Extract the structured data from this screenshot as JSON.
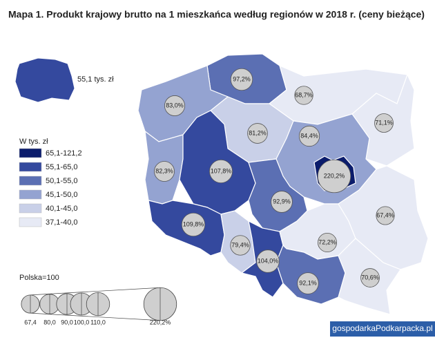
{
  "title": "Mapa 1. Produkt krajowy brutto na 1 mieszkańca według regionów w 2018 r. (ceny bieżące)",
  "national": {
    "label": "55,1 tys. zł",
    "color": "#34499e"
  },
  "legend": {
    "title": "W tys. zł",
    "items": [
      {
        "label": "65,1-121,2",
        "color": "#0b1c6c"
      },
      {
        "label": "55,1-65,0",
        "color": "#34499e"
      },
      {
        "label": "50,1-55,0",
        "color": "#5b6fb3"
      },
      {
        "label": "45,1-50,0",
        "color": "#94a3d1"
      },
      {
        "label": "40,1-45,0",
        "color": "#c9d0e8"
      },
      {
        "label": "37,1-40,0",
        "color": "#e7eaf5"
      }
    ]
  },
  "regions": [
    {
      "value": 97.2,
      "label": "97,2%",
      "color": "#5b6fb3"
    },
    {
      "value": 68.7,
      "label": "68,7%",
      "color": "#e7eaf5"
    },
    {
      "value": 71.1,
      "label": "71,1%",
      "color": "#e7eaf5"
    },
    {
      "value": 83.0,
      "label": "83,0%",
      "color": "#94a3d1"
    },
    {
      "value": 81.2,
      "label": "81,2%",
      "color": "#c9d0e8"
    },
    {
      "value": 84.4,
      "label": "84,4%",
      "color": "#94a3d1"
    },
    {
      "value": 220.2,
      "label": "220,2%",
      "color": "#0b1c6c"
    },
    {
      "value": 82.3,
      "label": "82,3%",
      "color": "#94a3d1"
    },
    {
      "value": 107.8,
      "label": "107,8%",
      "color": "#34499e"
    },
    {
      "value": 92.9,
      "label": "92,9%",
      "color": "#5b6fb3"
    },
    {
      "value": 109.8,
      "label": "109,8%",
      "color": "#34499e"
    },
    {
      "value": 79.4,
      "label": "79,4%",
      "color": "#c9d0e8"
    },
    {
      "value": 104.0,
      "label": "104,0%",
      "color": "#34499e"
    },
    {
      "value": 72.2,
      "label": "72,2%",
      "color": "#e7eaf5"
    },
    {
      "value": 67.4,
      "label": "67,4%",
      "color": "#e7eaf5"
    },
    {
      "value": 92.1,
      "label": "92,1%",
      "color": "#5b6fb3"
    },
    {
      "value": 70.6,
      "label": "70,6%",
      "color": "#e7eaf5"
    }
  ],
  "scale": {
    "title": "Polska=100",
    "ticks": [
      {
        "value": 67.4,
        "label": "67,4"
      },
      {
        "value": 80.0,
        "label": "80,0"
      },
      {
        "value": 90.0,
        "label": "90,0"
      },
      {
        "value": 100.0,
        "label": "100,0"
      },
      {
        "value": 110.0,
        "label": "110,0"
      },
      {
        "value": 220.2,
        "label": "220,2%"
      }
    ]
  },
  "watermark": "gospodarkaPodkarpacka.pl"
}
